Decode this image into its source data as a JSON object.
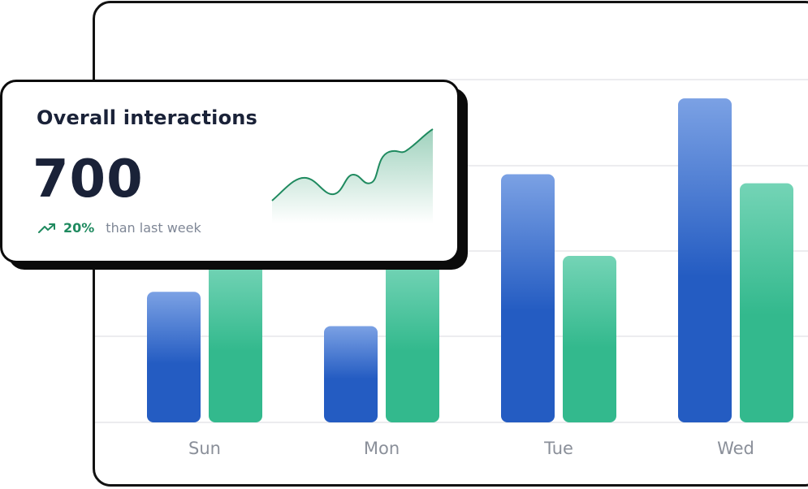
{
  "stat_card": {
    "title": "Overall interactions",
    "value": "700",
    "change_value": "20%",
    "change_label": "than last week",
    "trend_icon": "trending-up-icon",
    "accent_color": "#1f8a5f"
  },
  "colors": {
    "series_a_top": "#7ba1e4",
    "series_a_bottom": "#245cc2",
    "series_b_top": "#74d4b6",
    "series_b_bottom": "#33b98d",
    "gridline": "#ececef",
    "tick_label": "#8a8f99"
  },
  "chart_data": {
    "type": "bar",
    "categories": [
      "Sun",
      "Mon",
      "Tue",
      "Wed"
    ],
    "series": [
      {
        "values": [
          160,
          118,
          304,
          397
        ]
      },
      {
        "values": [
          195,
          195,
          204,
          293
        ]
      }
    ],
    "ylim": [
      0,
      420
    ],
    "grid": true,
    "legend": "none"
  }
}
